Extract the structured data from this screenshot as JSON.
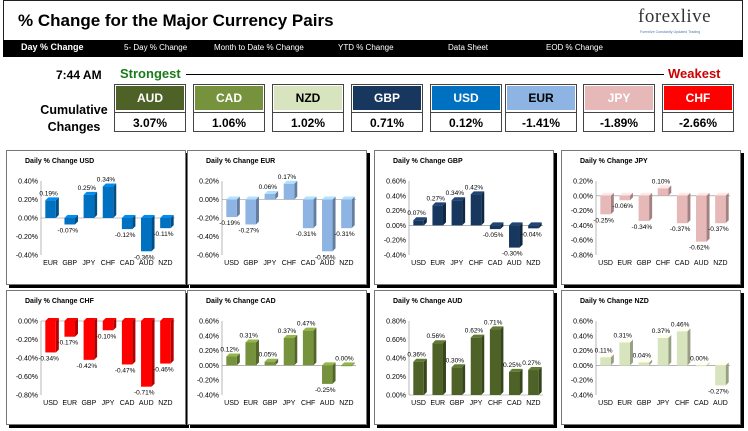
{
  "header": {
    "title": "% Change for the Major Currency Pairs",
    "logo_text": "forexlive",
    "logo_tagline": "Forexlive Constantly Updated Trading"
  },
  "nav": {
    "items": [
      {
        "label": "Day % Change",
        "active": true
      },
      {
        "label": "5- Day % Change",
        "active": false
      },
      {
        "label": "Month to Date % Change",
        "active": false
      },
      {
        "label": "YTD % Change",
        "active": false
      },
      {
        "label": "Data Sheet",
        "active": false
      },
      {
        "label": "EOD % Change",
        "active": false
      }
    ]
  },
  "summary": {
    "time": "7:44 AM",
    "cumulative_label_line1": "Cumulative",
    "cumulative_label_line2": "Changes",
    "strongest_label": "Strongest",
    "weakest_label": "Weakest",
    "currencies": [
      {
        "name": "AUD",
        "value": "3.07%",
        "bg": "#4e6228",
        "fg": "#ffffff"
      },
      {
        "name": "CAD",
        "value": "1.06%",
        "bg": "#76923c",
        "fg": "#ffffff"
      },
      {
        "name": "NZD",
        "value": "1.02%",
        "bg": "#d7e4bd",
        "fg": "#000000"
      },
      {
        "name": "GBP",
        "value": "0.71%",
        "bg": "#17375e",
        "fg": "#ffffff"
      },
      {
        "name": "USD",
        "value": "0.12%",
        "bg": "#0070c0",
        "fg": "#ffffff"
      },
      {
        "name": "EUR",
        "value": "-1.41%",
        "bg": "#8eb4e3",
        "fg": "#000000"
      },
      {
        "name": "JPY",
        "value": "-1.89%",
        "bg": "#e6b9b8",
        "fg": "#ffffff"
      },
      {
        "name": "CHF",
        "value": "-2.66%",
        "bg": "#ff0000",
        "fg": "#ffffff"
      }
    ]
  },
  "chart_data": [
    {
      "type": "bar",
      "title": "Daily % Change USD",
      "categories": [
        "EUR",
        "GBP",
        "JPY",
        "CHF",
        "CAD",
        "AUD",
        "NZD"
      ],
      "values": [
        0.19,
        -0.07,
        0.25,
        0.34,
        -0.12,
        -0.36,
        -0.11
      ],
      "labels": [
        "0.19%",
        "-0.07%",
        "0.25%",
        "0.34%",
        "-0.12%",
        "-0.36%",
        "-0.11%"
      ],
      "ylim": [
        -0.4,
        0.4
      ],
      "yticks": [
        "0.40%",
        "0.20%",
        "0.00%",
        "-0.20%",
        "-0.40%"
      ],
      "color": "#0070c0"
    },
    {
      "type": "bar",
      "title": "Daily % Change EUR",
      "categories": [
        "USD",
        "GBP",
        "JPY",
        "CHF",
        "CAD",
        "AUD",
        "NZD"
      ],
      "values": [
        -0.19,
        -0.27,
        0.06,
        0.17,
        -0.31,
        -0.56,
        -0.31
      ],
      "labels": [
        "-0.19%",
        "-0.27%",
        "0.06%",
        "0.17%",
        "-0.31%",
        "-0.56%",
        "-0.31%"
      ],
      "ylim": [
        -0.6,
        0.2
      ],
      "yticks": [
        "0.20%",
        "0.00%",
        "-0.20%",
        "-0.40%",
        "-0.60%"
      ],
      "color": "#8eb4e3"
    },
    {
      "type": "bar",
      "title": "Daily % Change GBP",
      "categories": [
        "USD",
        "EUR",
        "JPY",
        "CHF",
        "CAD",
        "AUD",
        "NZD"
      ],
      "values": [
        0.07,
        0.27,
        0.34,
        0.42,
        -0.05,
        -0.3,
        -0.04
      ],
      "labels": [
        "0.07%",
        "0.27%",
        "0.34%",
        "0.42%",
        "-0.05%",
        "-0.30%",
        "-0.04%"
      ],
      "ylim": [
        -0.4,
        0.6
      ],
      "yticks": [
        "0.60%",
        "0.40%",
        "0.20%",
        "0.00%",
        "-0.20%",
        "-0.40%"
      ],
      "color": "#17375e"
    },
    {
      "type": "bar",
      "title": "Daily % Change JPY",
      "categories": [
        "USD",
        "EUR",
        "GBP",
        "CHF",
        "CAD",
        "AUD",
        "NZD"
      ],
      "values": [
        -0.25,
        -0.06,
        -0.34,
        0.1,
        -0.37,
        -0.62,
        -0.37
      ],
      "labels": [
        "-0.25%",
        "-0.06%",
        "-0.34%",
        "0.10%",
        "-0.37%",
        "-0.62%",
        "-0.37%"
      ],
      "ylim": [
        -0.8,
        0.2
      ],
      "yticks": [
        "0.20%",
        "0.00%",
        "-0.20%",
        "-0.40%",
        "-0.60%",
        "-0.80%"
      ],
      "color": "#e6b9b8"
    },
    {
      "type": "bar",
      "title": "Daily % Change CHF",
      "categories": [
        "USD",
        "EUR",
        "GBP",
        "JPY",
        "CAD",
        "AUD",
        "NZD"
      ],
      "values": [
        -0.34,
        -0.17,
        -0.42,
        -0.1,
        -0.47,
        -0.71,
        -0.46
      ],
      "labels": [
        "-0.34%",
        "-0.17%",
        "-0.42%",
        "-0.10%",
        "-0.47%",
        "-0.71%",
        "-0.46%"
      ],
      "ylim": [
        -0.8,
        0.0
      ],
      "yticks": [
        "0.00%",
        "-0.20%",
        "-0.40%",
        "-0.60%",
        "-0.80%"
      ],
      "color": "#ff0000"
    },
    {
      "type": "bar",
      "title": "Daily % Change CAD",
      "categories": [
        "USD",
        "EUR",
        "GBP",
        "JPY",
        "CHF",
        "AUD",
        "NZD"
      ],
      "values": [
        0.12,
        0.31,
        0.05,
        0.37,
        0.47,
        -0.25,
        0.0
      ],
      "labels": [
        "0.12%",
        "0.31%",
        "0.05%",
        "0.37%",
        "0.47%",
        "-0.25%",
        "0.00%"
      ],
      "ylim": [
        -0.4,
        0.6
      ],
      "yticks": [
        "0.60%",
        "0.40%",
        "0.20%",
        "0.00%",
        "-0.20%",
        "-0.40%"
      ],
      "color": "#76923c"
    },
    {
      "type": "bar",
      "title": "Daily % Change AUD",
      "categories": [
        "USD",
        "EUR",
        "GBP",
        "JPY",
        "CHF",
        "CAD",
        "NZD"
      ],
      "values": [
        0.36,
        0.56,
        0.3,
        0.62,
        0.71,
        0.25,
        0.27
      ],
      "labels": [
        "0.36%",
        "0.56%",
        "0.30%",
        "0.62%",
        "0.71%",
        "0.25%",
        "0.27%"
      ],
      "ylim": [
        0.0,
        0.8
      ],
      "yticks": [
        "0.80%",
        "0.60%",
        "0.40%",
        "0.20%",
        "0.00%"
      ],
      "color": "#4e6228"
    },
    {
      "type": "bar",
      "title": "Daily % Change NZD",
      "categories": [
        "USD",
        "EUR",
        "GBP",
        "JPY",
        "CHF",
        "CAD",
        "AUD"
      ],
      "values": [
        0.11,
        0.31,
        0.04,
        0.37,
        0.46,
        0.0,
        -0.27
      ],
      "labels": [
        "0.11%",
        "0.31%",
        "0.04%",
        "0.37%",
        "0.46%",
        "0.00%",
        "-0.27%"
      ],
      "ylim": [
        -0.4,
        0.6
      ],
      "yticks": [
        "0.60%",
        "0.40%",
        "0.20%",
        "0.00%",
        "-0.20%",
        "-0.40%"
      ],
      "color": "#d7e4bd"
    }
  ]
}
